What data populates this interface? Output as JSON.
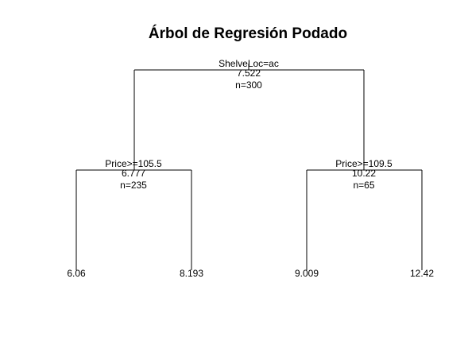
{
  "title": "Árbol de Regresión Podado",
  "tree": {
    "root": {
      "split": "ShelveLoc=ac",
      "value": "7.522",
      "n": "n=300"
    },
    "left": {
      "split": "Price>=105.5",
      "value": "6.777",
      "n": "n=235"
    },
    "right": {
      "split": "Price>=109.5",
      "value": "10.22",
      "n": "n=65"
    },
    "leaves": [
      {
        "value": "6.06"
      },
      {
        "value": "8.193"
      },
      {
        "value": "9.009"
      },
      {
        "value": "12.42"
      }
    ]
  }
}
